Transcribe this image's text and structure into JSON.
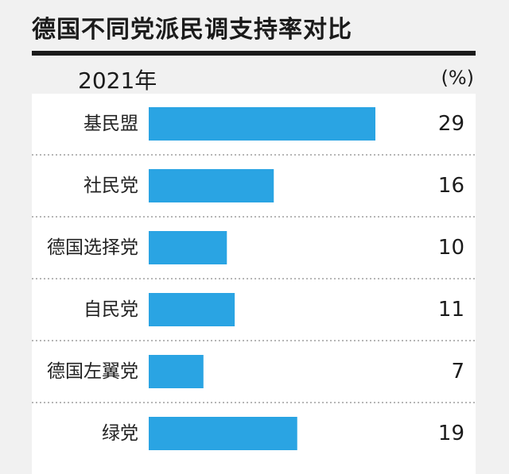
{
  "header": {
    "title": "德国不同党派民调支持率对比",
    "year": "2021年",
    "unit": "(%)"
  },
  "colors": {
    "bar": "#2aa4e3",
    "separator": "#8a8a8a",
    "rule": "#1b1b1b"
  },
  "chart_data": {
    "type": "bar",
    "orientation": "horizontal",
    "categories": [
      "基民盟",
      "社民党",
      "德国选择党",
      "自民党",
      "德国左翼党",
      "绿党"
    ],
    "values": [
      29,
      16,
      10,
      11,
      7,
      19
    ],
    "value_labels": [
      "29",
      "16",
      "10",
      "11",
      "7",
      "19"
    ],
    "title": "德国不同党派民调支持率对比",
    "ylabel": "",
    "xlabel": "",
    "unit": "(%)",
    "xlim": [
      0,
      29
    ],
    "grid": false
  }
}
